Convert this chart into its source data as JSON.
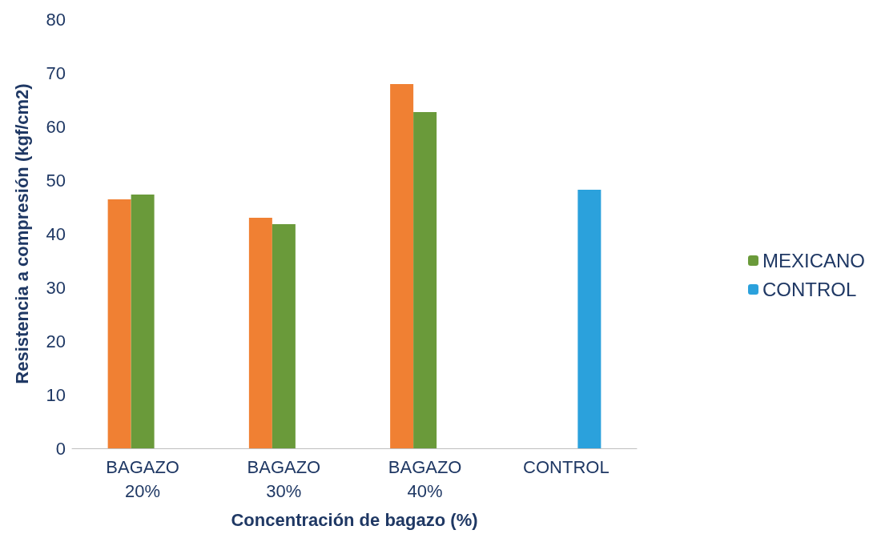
{
  "chart_data": {
    "type": "bar",
    "xlabel": "Concentración de bagazo (%)",
    "ylabel": "Resistencia a compresión (kgf/cm2)",
    "categories": [
      "BAGAZO 20%",
      "BAGAZO 30%",
      "BAGAZO 40%",
      "CONTROL"
    ],
    "series": [
      {
        "color": "#f08033",
        "values": [
          46.4,
          43.0,
          67.9,
          null
        ]
      },
      {
        "name": "MEXICANO",
        "color": "#6a9a3a",
        "values": [
          47.3,
          41.8,
          62.7,
          null
        ]
      },
      {
        "name": "CONTROL",
        "color": "#2ba1dc",
        "values": [
          null,
          null,
          null,
          48.2
        ]
      }
    ],
    "ylim": [
      0,
      80
    ],
    "yticks": [
      0,
      10,
      20,
      30,
      40,
      50,
      60,
      70,
      80
    ],
    "grid": false,
    "legend": "right"
  }
}
